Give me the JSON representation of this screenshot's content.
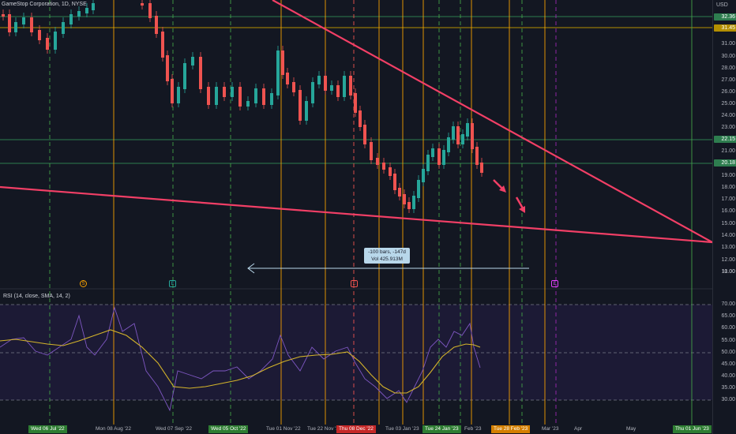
{
  "header": {
    "symbol_title": "GameStop Corporation, 1D, NYSE",
    "currency": "USD"
  },
  "price_axis": {
    "ticks": [
      "31.00",
      "30.00",
      "28.00",
      "27.00",
      "26.00",
      "25.00",
      "24.00",
      "23.00",
      "21.00",
      "20.00",
      "19.00",
      "18.00",
      "17.00",
      "16.00",
      "15.00",
      "14.00",
      "13.00",
      "12.00",
      "11.00",
      "10.00"
    ],
    "tags": [
      {
        "label": "32.36",
        "color": "#2e7d4f"
      },
      {
        "label": "31.45",
        "color": "#b38f00"
      },
      {
        "label": "22.15",
        "color": "#2e7d4f"
      },
      {
        "label": "20.18",
        "color": "#2e7d4f"
      }
    ]
  },
  "rsi_axis": {
    "ticks": [
      "70.00",
      "65.00",
      "60.00",
      "55.00",
      "50.00",
      "45.00",
      "40.00",
      "35.00",
      "30.00"
    ]
  },
  "indicator": {
    "rsi_label": "RSI (14, close, SMA, 14, 2)"
  },
  "time_axis": {
    "labels": [
      {
        "text": "Wed 06 Jul '22",
        "style": "green"
      },
      {
        "text": "Mon 08 Aug '22",
        "style": "plain"
      },
      {
        "text": "Wed 07 Sep '22",
        "style": "plain"
      },
      {
        "text": "Wed 05 Oct '22",
        "style": "green"
      },
      {
        "text": "Tue 01 Nov '22",
        "style": "plain"
      },
      {
        "text": "Tue 22 Nov '22",
        "style": "plain"
      },
      {
        "text": "Thu 08 Dec '22",
        "style": "red"
      },
      {
        "text": "Tue 03 Jan '23",
        "style": "plain"
      },
      {
        "text": "Tue 24 Jan '23",
        "style": "green"
      },
      {
        "text": "Feb '23",
        "style": "plain"
      },
      {
        "text": "Tue 28 Feb '23",
        "style": "orange"
      },
      {
        "text": "Mar '23",
        "style": "plain"
      },
      {
        "text": "Apr",
        "style": "plain"
      },
      {
        "text": "May",
        "style": "plain"
      },
      {
        "text": "Thu 01 Jun '23",
        "style": "green"
      }
    ]
  },
  "markers": [
    {
      "label": "S",
      "color": "#f59f00"
    },
    {
      "label": "E",
      "color": "#26a69a"
    },
    {
      "label": "E",
      "color": "#ef5350"
    },
    {
      "label": "E",
      "color": "#e040fb"
    }
  ],
  "measure": {
    "line1": "-100 bars, -147d",
    "line2": "Vol 425.913M"
  },
  "colors": {
    "up": "#26a69a",
    "down": "#ef5350",
    "trendline": "#f23f66",
    "rsi": "#7e57c2",
    "rsi_ma": "#d4b42a",
    "orange_vline": "#f59f00",
    "green_vline": "#43a047"
  }
}
